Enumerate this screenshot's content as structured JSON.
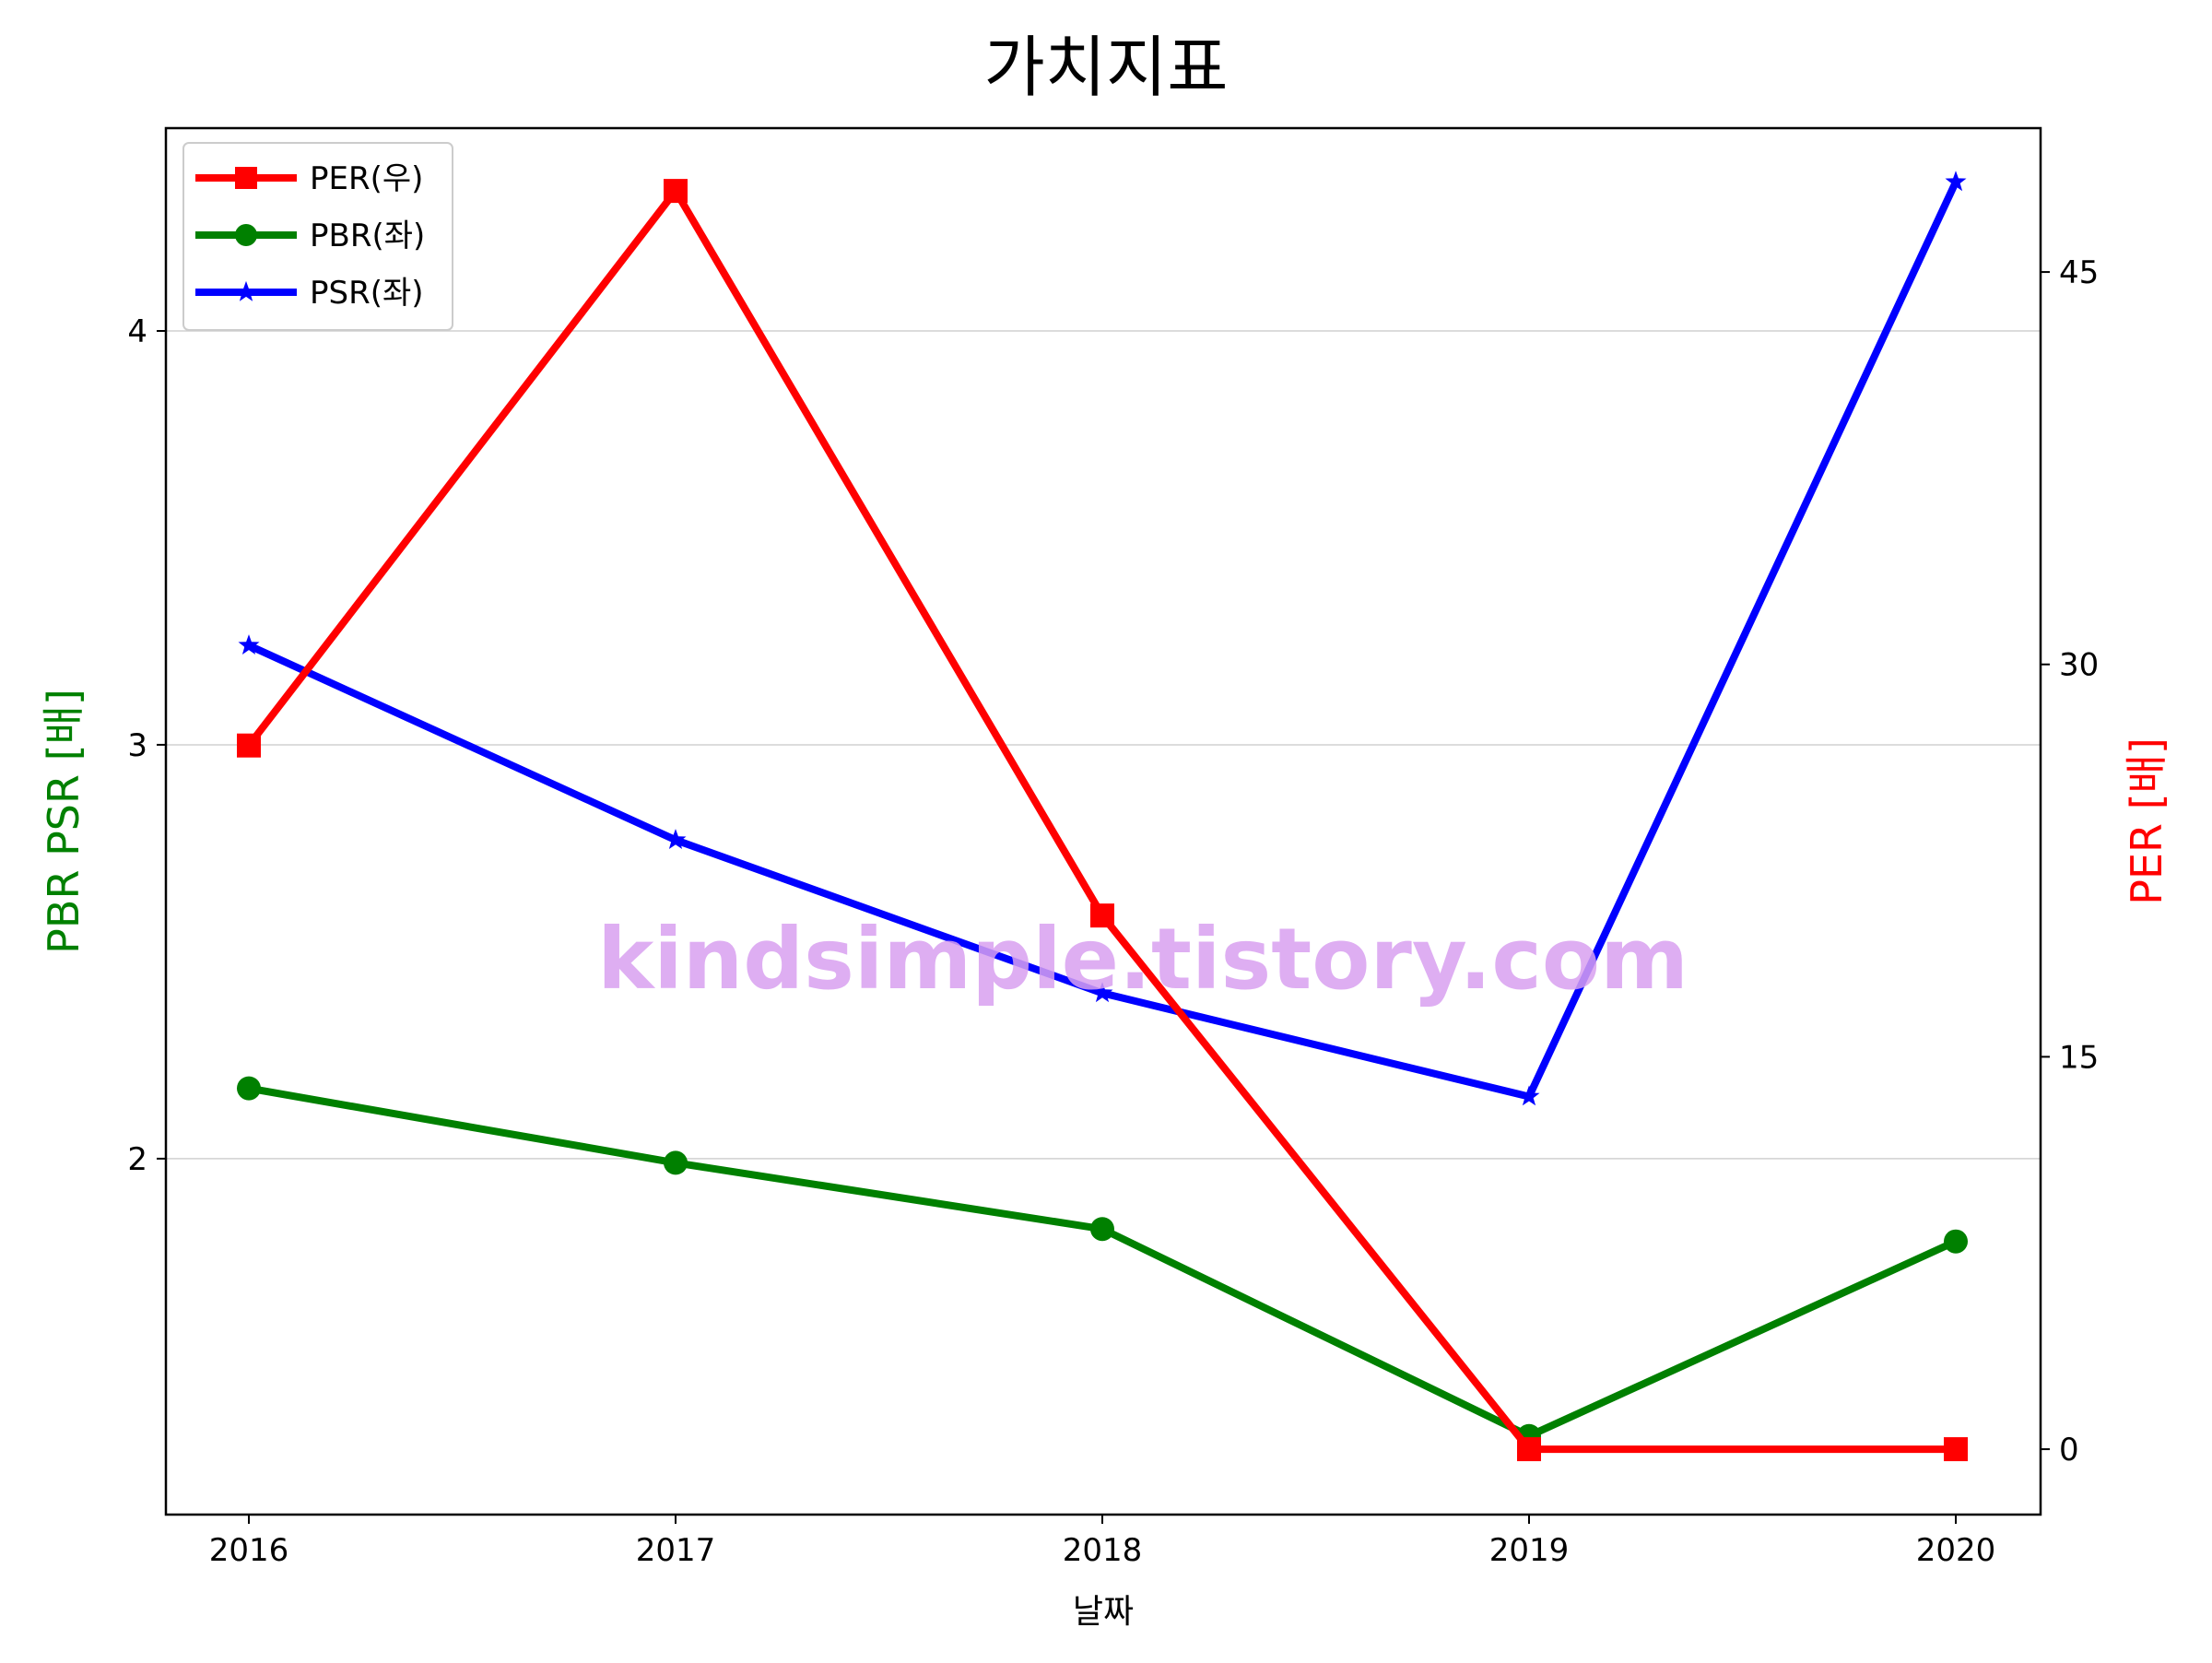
{
  "chart_data": {
    "type": "line",
    "title": "가치지표",
    "xlabel": "날짜",
    "ylabel_left": "PBR PSR [배]",
    "ylabel_right": "PER [배]",
    "categories": [
      "2016",
      "2017",
      "2018",
      "2019",
      "2020"
    ],
    "left_axis": {
      "ylim": [
        1.14,
        4.49
      ],
      "ticks": [
        2,
        3,
        4
      ],
      "tick_labels": [
        "2",
        "3",
        "4"
      ]
    },
    "right_axis": {
      "ylim": [
        -2.5,
        50.5
      ],
      "ticks": [
        0,
        15,
        30,
        45
      ],
      "tick_labels": [
        "0",
        "15",
        "30",
        "45"
      ]
    },
    "grid": {
      "horizontal": true,
      "axis": "left"
    },
    "legend_position": "top-left",
    "watermark": "kindsimple.tistory.com",
    "series": [
      {
        "name": "PER(우)",
        "axis": "right",
        "color": "#ff0000",
        "marker": "square",
        "values": [
          26.9,
          48.1,
          20.4,
          0.0,
          0.0
        ]
      },
      {
        "name": "PBR(좌)",
        "axis": "left",
        "color": "#008000",
        "marker": "circle",
        "values": [
          2.17,
          1.99,
          1.83,
          1.33,
          1.8
        ]
      },
      {
        "name": "PSR(좌)",
        "axis": "left",
        "color": "#0000ff",
        "marker": "star",
        "values": [
          3.24,
          2.77,
          2.4,
          2.15,
          4.36
        ]
      }
    ]
  }
}
